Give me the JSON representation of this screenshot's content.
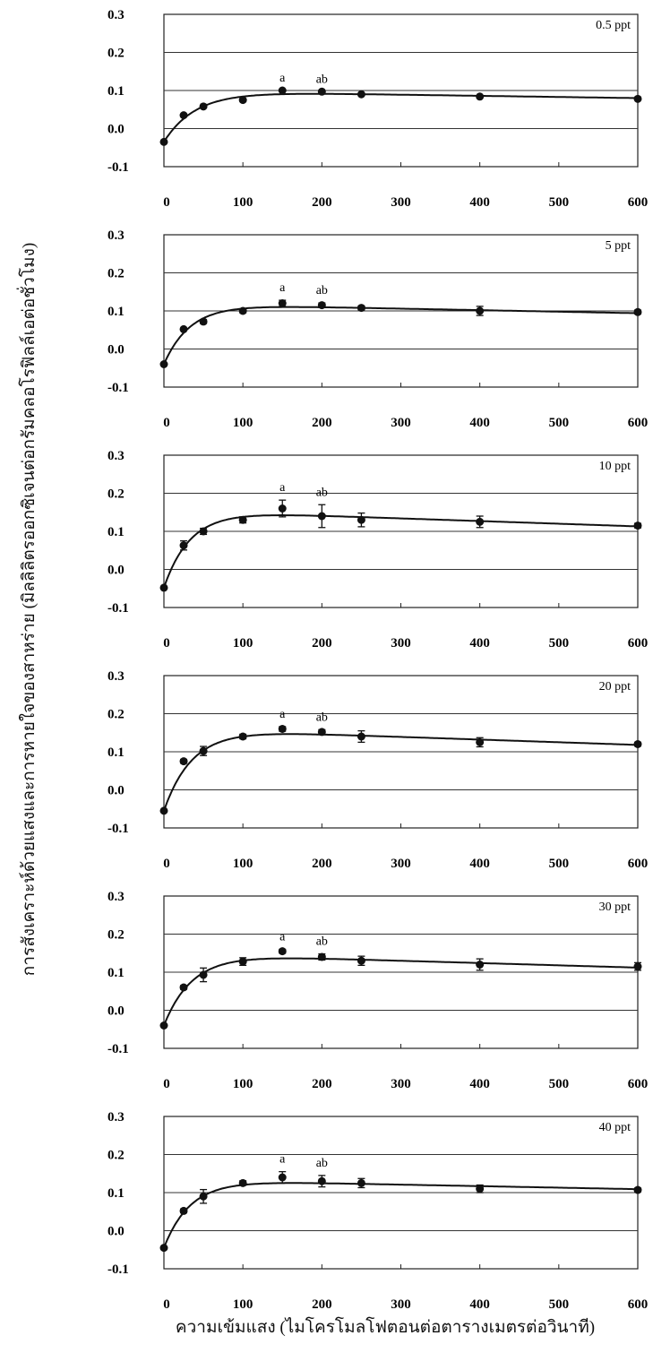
{
  "y_axis_label": "การสังเคราะห์ด้วยแสงและการหายใจของสาหร่าย (มิลลิลิตรออกซิเจนต่อกรัมคลอโรฟิลล์เอต่อชั่วโมง)",
  "x_axis_label": "ความเข้มแสง (ไมโครโมลโฟตอนต่อตารางเมตรต่อวินาที)",
  "chart_data": [
    {
      "type": "scatter",
      "panel_label": "0.5 ppt",
      "xlim": [
        0,
        600
      ],
      "ylim": [
        -0.1,
        0.3
      ],
      "xticks": [
        0,
        100,
        200,
        300,
        400,
        500,
        600
      ],
      "yticks": [
        -0.1,
        0.0,
        0.1,
        0.2,
        0.3
      ],
      "x": [
        0,
        25,
        50,
        100,
        150,
        200,
        250,
        400,
        600
      ],
      "y": [
        -0.035,
        0.035,
        0.058,
        0.075,
        0.1,
        0.097,
        0.09,
        0.084,
        0.078
      ],
      "err": [
        0,
        0,
        0,
        0,
        0,
        0,
        0,
        0,
        0
      ],
      "fit_curve": {
        "max": 0.098,
        "rate": 0.025,
        "decline": 3e-05
      },
      "annotations": [
        {
          "text": "a",
          "x": 150
        },
        {
          "text": "ab",
          "x": 200
        }
      ],
      "grid": true
    },
    {
      "type": "scatter",
      "panel_label": "5 ppt",
      "xlim": [
        0,
        600
      ],
      "ylim": [
        -0.1,
        0.3
      ],
      "xticks": [
        0,
        100,
        200,
        300,
        400,
        500,
        600
      ],
      "yticks": [
        -0.1,
        0.0,
        0.1,
        0.2,
        0.3
      ],
      "x": [
        0,
        25,
        50,
        100,
        150,
        200,
        250,
        400,
        600
      ],
      "y": [
        -0.04,
        0.052,
        0.072,
        0.1,
        0.12,
        0.115,
        0.108,
        0.1,
        0.097
      ],
      "err": [
        0,
        0,
        0.005,
        0.005,
        0.008,
        0.006,
        0.005,
        0.012,
        0.005
      ],
      "fit_curve": {
        "max": 0.118,
        "rate": 0.03,
        "decline": 4e-05
      },
      "annotations": [
        {
          "text": "a",
          "x": 150
        },
        {
          "text": "ab",
          "x": 200
        }
      ],
      "grid": true
    },
    {
      "type": "scatter",
      "panel_label": "10 ppt",
      "xlim": [
        0,
        600
      ],
      "ylim": [
        -0.1,
        0.3
      ],
      "xticks": [
        0,
        100,
        200,
        300,
        400,
        500,
        600
      ],
      "yticks": [
        -0.1,
        0.0,
        0.1,
        0.2,
        0.3
      ],
      "x": [
        0,
        25,
        50,
        100,
        150,
        200,
        250,
        400,
        600
      ],
      "y": [
        -0.048,
        0.063,
        0.1,
        0.13,
        0.16,
        0.14,
        0.13,
        0.125,
        0.115
      ],
      "err": [
        0,
        0.012,
        0.008,
        0.008,
        0.022,
        0.03,
        0.018,
        0.015,
        0.006
      ],
      "fit_curve": {
        "max": 0.155,
        "rate": 0.03,
        "decline": 7e-05
      },
      "annotations": [
        {
          "text": "a",
          "x": 150
        },
        {
          "text": "ab",
          "x": 200
        }
      ],
      "grid": true
    },
    {
      "type": "scatter",
      "panel_label": "20 ppt",
      "xlim": [
        0,
        600
      ],
      "ylim": [
        -0.1,
        0.3
      ],
      "xticks": [
        0,
        100,
        200,
        300,
        400,
        500,
        600
      ],
      "yticks": [
        -0.1,
        0.0,
        0.1,
        0.2,
        0.3
      ],
      "x": [
        0,
        25,
        50,
        100,
        150,
        200,
        250,
        400,
        600
      ],
      "y": [
        -0.055,
        0.075,
        0.102,
        0.14,
        0.16,
        0.152,
        0.14,
        0.125,
        0.12
      ],
      "err": [
        0,
        0.005,
        0.012,
        0.006,
        0.006,
        0.006,
        0.015,
        0.012,
        0.005
      ],
      "fit_curve": {
        "max": 0.16,
        "rate": 0.028,
        "decline": 7e-05
      },
      "annotations": [
        {
          "text": "a",
          "x": 150
        },
        {
          "text": "ab",
          "x": 200
        }
      ],
      "grid": true
    },
    {
      "type": "scatter",
      "panel_label": "30 ppt",
      "xlim": [
        0,
        600
      ],
      "ylim": [
        -0.1,
        0.3
      ],
      "xticks": [
        0,
        100,
        200,
        300,
        400,
        500,
        600
      ],
      "yticks": [
        -0.1,
        0.0,
        0.1,
        0.2,
        0.3
      ],
      "x": [
        0,
        25,
        50,
        100,
        150,
        200,
        250,
        400,
        600
      ],
      "y": [
        -0.04,
        0.06,
        0.093,
        0.128,
        0.155,
        0.14,
        0.13,
        0.12,
        0.115
      ],
      "err": [
        0,
        0.005,
        0.018,
        0.01,
        0.005,
        0.008,
        0.012,
        0.015,
        0.01
      ],
      "fit_curve": {
        "max": 0.148,
        "rate": 0.028,
        "decline": 6e-05
      },
      "annotations": [
        {
          "text": "a",
          "x": 150
        },
        {
          "text": "ab",
          "x": 200
        }
      ],
      "grid": true
    },
    {
      "type": "scatter",
      "panel_label": "40 ppt",
      "xlim": [
        0,
        600
      ],
      "ylim": [
        -0.1,
        0.3
      ],
      "xticks": [
        0,
        100,
        200,
        300,
        400,
        500,
        600
      ],
      "yticks": [
        -0.1,
        0.0,
        0.1,
        0.2,
        0.3
      ],
      "x": [
        0,
        25,
        50,
        100,
        150,
        200,
        250,
        400,
        600
      ],
      "y": [
        -0.045,
        0.052,
        0.09,
        0.125,
        0.14,
        0.13,
        0.125,
        0.11,
        0.107
      ],
      "err": [
        0,
        0.005,
        0.018,
        0.006,
        0.015,
        0.015,
        0.012,
        0.01,
        0.005
      ],
      "fit_curve": {
        "max": 0.133,
        "rate": 0.03,
        "decline": 4e-05
      },
      "annotations": [
        {
          "text": "a",
          "x": 150
        },
        {
          "text": "ab",
          "x": 200
        }
      ],
      "grid": true
    }
  ]
}
